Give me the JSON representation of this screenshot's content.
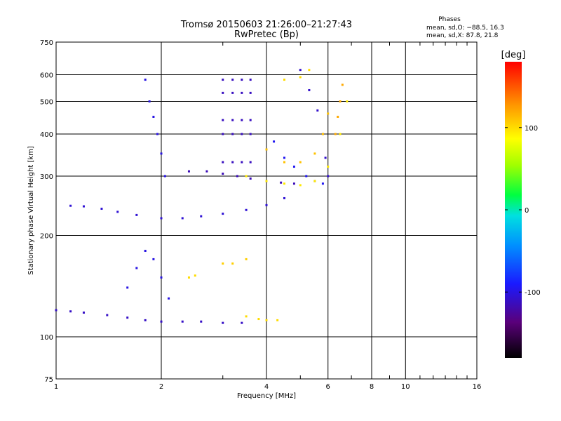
{
  "chart_data": {
    "type": "scatter",
    "title_line1": "Tromsø 20150603 21:26:00–21:27:43",
    "title_line2": "RwPretec (Bp)",
    "xlabel": "Frequency [MHz]",
    "ylabel": "Stationary phase Virtual Height [km]",
    "x_scale": "log",
    "y_scale": "log",
    "xlim": [
      1,
      16
    ],
    "ylim": [
      75,
      750
    ],
    "x_ticks": [
      1,
      2,
      4,
      6,
      8,
      10,
      16
    ],
    "y_ticks": [
      75,
      100,
      200,
      300,
      400,
      500,
      600,
      750
    ],
    "grid": true,
    "phase_box": {
      "heading": "Phases",
      "line_o": "mean, sd,O: −88.5, 16.3",
      "line_x": "mean, sd,X:  87.8, 21.8"
    },
    "colorbar": {
      "label": "[deg]",
      "range": [
        -180,
        180
      ],
      "ticks": [
        -100,
        0,
        100
      ]
    },
    "traces": [
      {
        "name": "",
        "phase": -110,
        "x": [
          1.0,
          1.1,
          1.2,
          1.4,
          1.6,
          1.8,
          2.0,
          2.3,
          2.6,
          3.0,
          3.4
        ],
        "y": [
          120,
          119,
          118,
          116,
          114,
          112,
          111,
          111,
          111,
          110,
          110
        ]
      },
      {
        "name": "",
        "phase": -105,
        "x": [
          1.1,
          1.2,
          1.35,
          1.5,
          1.7,
          2.0,
          2.3,
          2.6,
          3.0,
          3.5,
          4.0,
          4.5
        ],
        "y": [
          245,
          244,
          240,
          235,
          230,
          225,
          225,
          228,
          232,
          238,
          246,
          258
        ]
      },
      {
        "name": "",
        "phase": -115,
        "x": [
          2.4,
          2.7,
          3.0,
          3.3,
          3.6,
          4.0,
          4.4,
          4.8
        ],
        "y": [
          310,
          310,
          305,
          300,
          295,
          290,
          287,
          285
        ]
      },
      {
        "name": "",
        "phase": -112,
        "x": [
          3.0,
          3.2,
          3.4,
          3.6
        ],
        "y": [
          580,
          580,
          580,
          580
        ]
      },
      {
        "name": "",
        "phase": -112,
        "x": [
          3.0,
          3.2,
          3.4,
          3.6
        ],
        "y": [
          530,
          530,
          530,
          530
        ]
      },
      {
        "name": "",
        "phase": -112,
        "x": [
          3.0,
          3.2,
          3.4,
          3.6
        ],
        "y": [
          440,
          440,
          440,
          440
        ]
      },
      {
        "name": "",
        "phase": -112,
        "x": [
          3.0,
          3.2,
          3.4,
          3.6
        ],
        "y": [
          400,
          400,
          400,
          400
        ]
      },
      {
        "name": "",
        "phase": -112,
        "x": [
          3.0,
          3.2,
          3.4,
          3.6
        ],
        "y": [
          330,
          330,
          330,
          330
        ]
      },
      {
        "name": "",
        "phase": -100,
        "x": [
          1.8,
          1.85,
          1.9,
          1.95,
          2.0,
          2.05
        ],
        "y": [
          580,
          500,
          450,
          400,
          350,
          300
        ]
      },
      {
        "name": "",
        "phase": -100,
        "x": [
          1.6,
          1.7,
          1.8,
          1.9,
          2.0,
          2.1
        ],
        "y": [
          140,
          160,
          180,
          170,
          150,
          130
        ]
      },
      {
        "name": "",
        "phase": -108,
        "x": [
          5.0,
          5.3,
          5.6,
          5.8,
          5.9,
          6.0
        ],
        "y": [
          620,
          540,
          470,
          400,
          340,
          300
        ]
      },
      {
        "name": "",
        "phase": -95,
        "x": [
          4.2,
          4.5,
          4.8,
          5.2,
          5.5,
          5.8
        ],
        "y": [
          380,
          340,
          320,
          300,
          290,
          285
        ]
      },
      {
        "name": "",
        "phase": 95,
        "x": [
          3.5,
          4.0,
          4.5,
          5.0,
          5.5,
          6.0,
          6.5,
          6.8
        ],
        "y": [
          300,
          290,
          285,
          282,
          290,
          320,
          400,
          500
        ]
      },
      {
        "name": "",
        "phase": 110,
        "x": [
          4.0,
          4.5,
          5.0,
          5.5,
          5.8,
          6.0
        ],
        "y": [
          360,
          330,
          330,
          350,
          400,
          460
        ]
      },
      {
        "name": "",
        "phase": 120,
        "x": [
          6.3,
          6.4,
          6.5,
          6.6
        ],
        "y": [
          400,
          450,
          500,
          560
        ]
      },
      {
        "name": "",
        "phase": 105,
        "x": [
          3.0,
          3.2,
          3.5
        ],
        "y": [
          165,
          165,
          170
        ]
      },
      {
        "name": "",
        "phase": 100,
        "x": [
          3.5,
          3.8,
          4.0,
          4.3
        ],
        "y": [
          115,
          113,
          112,
          112
        ]
      },
      {
        "name": "",
        "phase": 100,
        "x": [
          4.5,
          5.0,
          5.3
        ],
        "y": [
          580,
          590,
          620
        ]
      },
      {
        "name": "",
        "phase": 100,
        "x": [
          2.4,
          2.5
        ],
        "y": [
          150,
          152
        ]
      }
    ]
  }
}
